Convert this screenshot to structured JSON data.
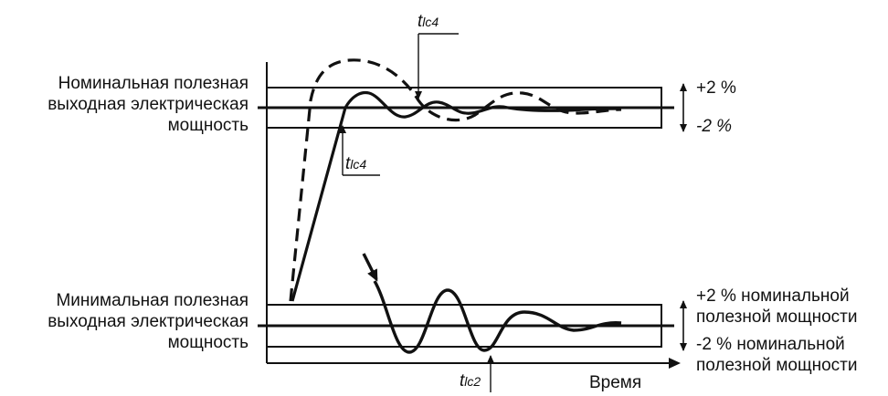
{
  "labels": {
    "nominal_power": [
      "Номинальная полезная",
      "выходная электрическая",
      "мощность"
    ],
    "minimum_power": [
      "Минимальная полезная",
      "выходная электрическая",
      "мощность"
    ],
    "upper_band": "+2 %",
    "lower_band": "-2 %",
    "lower_upper_band": [
      "+2 % номинальной",
      "полезной мощности"
    ],
    "lower_lower_band": [
      "-2 % номинальной",
      "полезной мощности"
    ],
    "time_axis": "Время"
  },
  "markers": {
    "t_lc4_top": {
      "symbol": "t",
      "subscript": "lc4"
    },
    "t_lc4_mid": {
      "symbol": "t",
      "subscript": "lc4"
    },
    "t_lc2": {
      "symbol": "t",
      "subscript": "lc2"
    }
  },
  "colors": {
    "ink": "#111111",
    "background": "#ffffff"
  }
}
